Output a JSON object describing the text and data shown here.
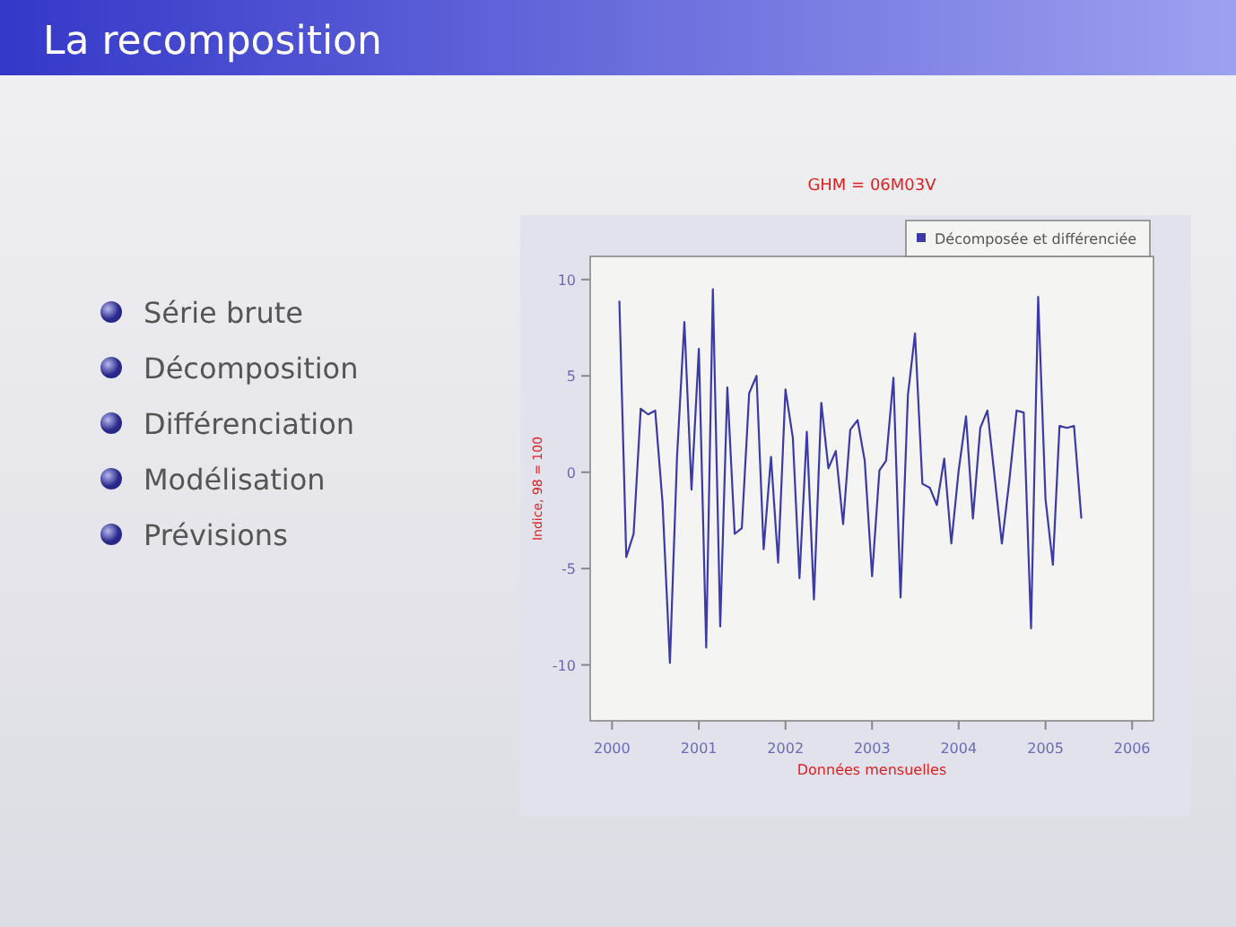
{
  "chart_data": {
    "type": "line",
    "title": "GHM = 06M03V",
    "xlabel": "Données mensuelles",
    "ylabel": "Indice, 98 = 100",
    "annotations": [
      "La recomposition",
      "Série brute",
      "Décomposition",
      "Différenciation",
      "Modélisation",
      "Prévisions"
    ],
    "x": [
      "2000-02",
      "2000-03",
      "2000-04",
      "2000-05",
      "2000-06",
      "2000-07",
      "2000-08",
      "2000-09",
      "2000-10",
      "2000-11",
      "2000-12",
      "2001-01",
      "2001-02",
      "2001-03",
      "2001-04",
      "2001-05",
      "2001-06",
      "2001-07",
      "2001-08",
      "2001-09",
      "2001-10",
      "2001-11",
      "2001-12",
      "2002-01",
      "2002-02",
      "2002-03",
      "2002-04",
      "2002-05",
      "2002-06",
      "2002-07",
      "2002-08",
      "2002-09",
      "2002-10",
      "2002-11",
      "2002-12",
      "2003-01",
      "2003-02",
      "2003-03",
      "2003-04",
      "2003-05",
      "2003-06",
      "2003-07",
      "2003-08",
      "2003-09",
      "2003-10",
      "2003-11",
      "2003-12",
      "2004-01",
      "2004-02",
      "2004-03",
      "2004-04",
      "2004-05",
      "2004-06",
      "2004-07",
      "2004-08",
      "2004-09",
      "2004-10",
      "2004-11",
      "2004-12",
      "2005-01",
      "2005-02",
      "2005-03",
      "2005-04",
      "2005-05",
      "2005-06"
    ],
    "series": [
      {
        "name": "Décomposée et différenciée",
        "color": "#3a3aa8",
        "values": [
          8.9,
          -4.4,
          -3.2,
          3.3,
          3.0,
          3.2,
          -1.6,
          -9.9,
          0.8,
          7.8,
          -0.9,
          6.4,
          -9.1,
          9.5,
          -8.0,
          4.4,
          -3.2,
          -2.9,
          4.1,
          5.0,
          -4.0,
          0.8,
          -4.7,
          4.3,
          1.8,
          -5.5,
          2.1,
          -6.6,
          3.6,
          0.2,
          1.1,
          -2.7,
          2.2,
          2.7,
          0.6,
          -5.4,
          0.1,
          0.6,
          4.9,
          -6.5,
          4.0,
          7.2,
          -0.6,
          -0.8,
          -1.7,
          0.7,
          -3.7,
          0.1,
          2.9,
          -2.4,
          2.3,
          3.2,
          -0.3,
          -3.7,
          -0.5,
          3.2,
          3.1,
          -8.1,
          9.1,
          -1.4,
          -4.8,
          2.4,
          2.3,
          2.4,
          -2.4
        ]
      }
    ],
    "xlim": [
      "1999-10",
      "2006-04"
    ],
    "xticks": [
      "2000",
      "2001",
      "2002",
      "2003",
      "2004",
      "2005",
      "2006"
    ],
    "ylim": [
      -12.9,
      11.2
    ],
    "yticks": [
      -10,
      -5,
      0,
      5,
      10
    ],
    "legend": "top right",
    "grid": false,
    "marker": "none",
    "line_style": "solid"
  }
}
